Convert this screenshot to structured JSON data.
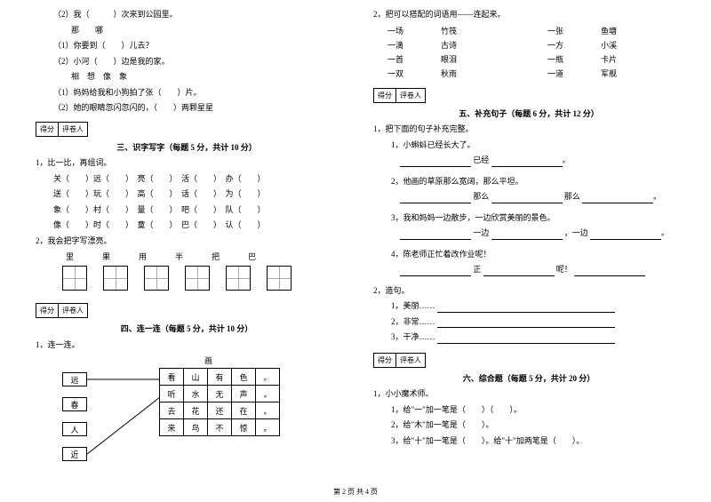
{
  "left": {
    "q2": "（2）我（　　　）次来到公园里。",
    "q2_opts": "那　　哪",
    "q2_1": "（1）你要到（　　）儿去？",
    "q2_2": "（2）小河（　　）边是我的家。",
    "q2_opts2": "相　想　像　象",
    "q2_3": "（1）妈妈给我和小狗拍了张（　　）片。",
    "q2_4": "（2）她的眼睛忽闪忽闪的，（　　）两颗星星",
    "score_label1": "得分",
    "score_label2": "评卷人",
    "sec3_title": "三、识字写字（每题 5 分，共计 10 分）",
    "sec3_q1": "1，比一比，再组词。",
    "pairs": [
      [
        "关（　　）远（　　）",
        "亮（　　）",
        "活（　　）",
        "办（　　）"
      ],
      [
        "送（　　）玩（　　）",
        "高（　　）",
        "话（　　）",
        "为（　　）"
      ],
      [
        "象（　　）村（　　）",
        "量（　　）",
        "吧（　　）",
        "队（　　）"
      ],
      [
        "像（　　）时（　　）",
        "童（　　）",
        "巴（　　）",
        "认（　　）"
      ]
    ],
    "sec3_q2": "2，我会把字写漂亮。",
    "chars": [
      "里",
      "果",
      "用",
      "半",
      "把",
      "巴"
    ],
    "sec4_title": "四、连一连（每题 5 分，共计 10 分）",
    "sec4_q1": "1，连一连。",
    "match_title": "画",
    "match_left": [
      "远",
      "春",
      "人",
      "近"
    ],
    "match_right": [
      [
        "看",
        "山",
        "有",
        "色",
        "。"
      ],
      [
        "听",
        "水",
        "无",
        "声",
        "。"
      ],
      [
        "去",
        "花",
        "还",
        "在",
        "。"
      ],
      [
        "来",
        "鸟",
        "不",
        "惊",
        "。"
      ]
    ]
  },
  "right": {
    "sec4_q2": "2，把可以搭配的词语用——连起来。",
    "pairs2": [
      [
        "一场",
        "竹筏",
        "",
        "一张",
        "鱼塘"
      ],
      [
        "一滴",
        "古诗",
        "",
        "一方",
        "小溪"
      ],
      [
        "一首",
        "眼泪",
        "",
        "一瓶",
        "卡片"
      ],
      [
        "一双",
        "秋雨",
        "",
        "一道",
        "军舰"
      ]
    ],
    "sec5_title": "五、补充句子（每题 6 分，共计 12 分）",
    "sec5_q1": "1，把下面的句子补充完整。",
    "sec5_items": [
      "1，小蝌蚪已经长大了。",
      "已经",
      "2，他画的草原那么宽阔，那么平坦。",
      "那么　　　　　　那么",
      "3，我和妈妈一边散步，一边欣赏美丽的景色。",
      "一边　　　　　　，一边",
      "4，陈老师正忙着改作业呢！",
      "正　　　　　　呢！"
    ],
    "sec5_q2": "2，造句。",
    "sec5_make": [
      "1，美丽……",
      "2，非常……",
      "3，干净……"
    ],
    "sec6_title": "六、综合题（每题 5 分，共计 20 分）",
    "sec6_q1": "1，小小魔术师。",
    "sec6_items": [
      "1，给\"一\"加一笔是（　　）（　　）。",
      "2，给\"木\"加一笔是（　　）。",
      "3，给\"十\"加一笔是（　　）。给\"十\"加两笔是（　　）。"
    ]
  },
  "footer": "第 2 页 共 4 页"
}
